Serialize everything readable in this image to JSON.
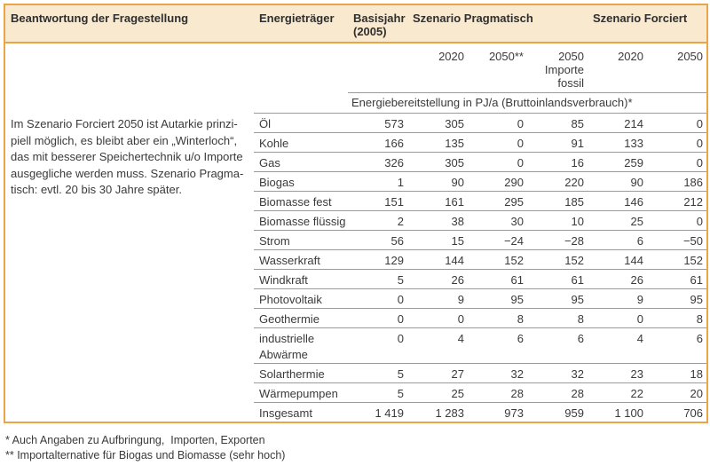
{
  "colors": {
    "band_background": "#f9e9cf",
    "table_border_orange": "#eba448",
    "row_line_gray": "#9b9b9b",
    "text": "#3a3a3a"
  },
  "table": {
    "header": {
      "col_question": "Beantwortung der Fragestellung",
      "col_carrier": "Energieträger",
      "col_base_year": "Basisjahr\n(2005)",
      "group_pragmatic": "Szenario Pragmatisch",
      "group_forced": "Szenario Forciert",
      "sub": [
        "2020",
        "2050**",
        "2050\nImporte\nfossil",
        "2020",
        "2050"
      ],
      "unit_row": "Energiebereitstellung in PJ/a (Bruttoinlandsverbrauch)*"
    },
    "answer_text": "Im Szenario Forciert 2050 ist Autarkie prinzi-\npiell möglich, es bleibt aber ein „Winterloch“,\ndas mit besserer Speichertechnik u/o Importe\nausgegliche werden muss. Szenario Pragma-\ntisch: evtl. 20 bis 30 Jahre später.",
    "rows": [
      {
        "label": "Öl",
        "values": [
          "573",
          "305",
          "0",
          "85",
          "214",
          "0"
        ]
      },
      {
        "label": "Kohle",
        "values": [
          "166",
          "135",
          "0",
          "91",
          "133",
          "0"
        ]
      },
      {
        "label": "Gas",
        "values": [
          "326",
          "305",
          "0",
          "16",
          "259",
          "0"
        ]
      },
      {
        "label": "Biogas",
        "values": [
          "1",
          "90",
          "290",
          "220",
          "90",
          "186"
        ]
      },
      {
        "label": "Biomasse fest",
        "values": [
          "151",
          "161",
          "295",
          "185",
          "146",
          "212"
        ]
      },
      {
        "label": "Biomasse flüssig",
        "values": [
          "2",
          "38",
          "30",
          "10",
          "25",
          "0"
        ]
      },
      {
        "label": "Strom",
        "values": [
          "56",
          "15",
          "−24",
          "−28",
          "6",
          "−50"
        ]
      },
      {
        "label": "Wasserkraft",
        "values": [
          "129",
          "144",
          "152",
          "152",
          "144",
          "152"
        ]
      },
      {
        "label": "Windkraft",
        "values": [
          "5",
          "26",
          "61",
          "61",
          "26",
          "61"
        ]
      },
      {
        "label": "Photovoltaik",
        "values": [
          "0",
          "9",
          "95",
          "95",
          "9",
          "95"
        ]
      },
      {
        "label": "Geothermie",
        "values": [
          "0",
          "0",
          "8",
          "8",
          "0",
          "8"
        ]
      },
      {
        "label": "industrielle\nAbwärme",
        "values": [
          "0",
          "4",
          "6",
          "6",
          "4",
          "6"
        ]
      },
      {
        "label": "Solarthermie",
        "values": [
          "5",
          "27",
          "32",
          "32",
          "23",
          "18"
        ]
      },
      {
        "label": "Wärmepumpen",
        "values": [
          "5",
          "25",
          "28",
          "28",
          "22",
          "20"
        ]
      },
      {
        "label": "Insgesamt",
        "values": [
          "1 419",
          "1 283",
          "973",
          "959",
          "1 100",
          "706"
        ],
        "total": true
      }
    ]
  },
  "footnotes": [
    "* Auch Angaben zu Aufbringung,  Importen, Exporten",
    "** Importalternative für Biogas und Biomasse (sehr hoch)"
  ]
}
